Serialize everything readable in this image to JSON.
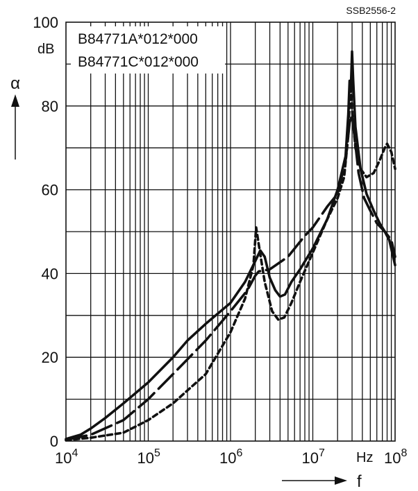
{
  "chart_data": {
    "type": "line",
    "code": "SSB2556-2",
    "xscale": "log",
    "xlim": [
      10000,
      100000000
    ],
    "ylim": [
      0,
      100
    ],
    "xlabel": "f",
    "ylabel": "α",
    "x_unit": "Hz",
    "y_unit": "dB",
    "x_ticks": [
      {
        "label": "10",
        "exp": "4"
      },
      {
        "label": "10",
        "exp": "5"
      },
      {
        "label": "10",
        "exp": "6"
      },
      {
        "label": "10",
        "exp": "7"
      },
      {
        "label": "10",
        "exp": "8"
      }
    ],
    "y_ticks": [
      "0",
      "20",
      "40",
      "60",
      "80",
      "100"
    ],
    "legend": [
      "B84771A*012*000",
      "B84771C*012*000"
    ],
    "grid": true,
    "series": [
      {
        "style": "solid",
        "points": [
          [
            10000,
            0.5
          ],
          [
            15000,
            1.5
          ],
          [
            20000,
            3
          ],
          [
            30000,
            5.5
          ],
          [
            50000,
            9
          ],
          [
            100000,
            14
          ],
          [
            200000,
            20
          ],
          [
            300000,
            24
          ],
          [
            500000,
            28
          ],
          [
            1000000,
            33
          ],
          [
            1500000,
            38
          ],
          [
            2000000,
            43
          ],
          [
            2300000,
            45.5
          ],
          [
            2600000,
            44
          ],
          [
            3000000,
            39
          ],
          [
            3500000,
            36
          ],
          [
            4000000,
            34.5
          ],
          [
            4600000,
            35
          ],
          [
            5500000,
            38
          ],
          [
            7000000,
            41
          ],
          [
            10000000,
            46
          ],
          [
            15000000,
            53
          ],
          [
            20000000,
            60
          ],
          [
            25000000,
            68
          ],
          [
            27000000,
            78
          ],
          [
            28000000,
            86
          ],
          [
            29000000,
            84
          ],
          [
            30000000,
            93
          ],
          [
            31000000,
            86
          ],
          [
            33000000,
            75
          ],
          [
            38000000,
            65
          ],
          [
            45000000,
            59
          ],
          [
            55000000,
            55
          ],
          [
            65000000,
            52
          ],
          [
            75000000,
            50
          ],
          [
            85000000,
            48
          ],
          [
            100000000,
            42
          ]
        ]
      },
      {
        "style": "dashed",
        "points": [
          [
            10000,
            0.3
          ],
          [
            20000,
            1.5
          ],
          [
            50000,
            5
          ],
          [
            100000,
            10
          ],
          [
            200000,
            16
          ],
          [
            500000,
            24
          ],
          [
            1000000,
            31
          ],
          [
            1600000,
            36
          ],
          [
            2000000,
            39.5
          ],
          [
            2200000,
            40.5
          ],
          [
            3000000,
            41
          ],
          [
            5000000,
            44
          ],
          [
            8000000,
            49
          ],
          [
            10000000,
            51
          ],
          [
            15000000,
            56
          ],
          [
            20000000,
            59
          ],
          [
            25000000,
            67
          ],
          [
            28000000,
            76
          ],
          [
            30000000,
            78
          ],
          [
            32000000,
            73
          ],
          [
            36000000,
            64
          ],
          [
            42000000,
            58
          ],
          [
            50000000,
            55
          ],
          [
            60000000,
            52
          ],
          [
            75000000,
            50
          ],
          [
            90000000,
            48
          ],
          [
            100000000,
            44
          ]
        ]
      },
      {
        "style": "dotted",
        "points": [
          [
            10000,
            0.2
          ],
          [
            20000,
            0.8
          ],
          [
            50000,
            2
          ],
          [
            100000,
            5
          ],
          [
            200000,
            9
          ],
          [
            500000,
            16
          ],
          [
            1000000,
            26
          ],
          [
            1500000,
            34
          ],
          [
            1900000,
            42
          ],
          [
            2050000,
            51
          ],
          [
            2200000,
            47
          ],
          [
            2600000,
            38
          ],
          [
            3200000,
            31
          ],
          [
            3800000,
            29
          ],
          [
            4500000,
            29.5
          ],
          [
            5500000,
            33
          ],
          [
            7000000,
            38
          ],
          [
            10000000,
            45
          ],
          [
            15000000,
            53
          ],
          [
            20000000,
            58
          ],
          [
            24000000,
            63
          ],
          [
            27000000,
            73
          ],
          [
            28000000,
            81
          ],
          [
            29000000,
            86
          ],
          [
            30000000,
            79
          ],
          [
            33000000,
            70
          ],
          [
            38000000,
            65
          ],
          [
            45000000,
            63
          ],
          [
            55000000,
            64
          ],
          [
            65000000,
            67
          ],
          [
            75000000,
            70
          ],
          [
            80000000,
            71
          ],
          [
            90000000,
            69
          ],
          [
            100000000,
            65
          ]
        ]
      }
    ]
  }
}
